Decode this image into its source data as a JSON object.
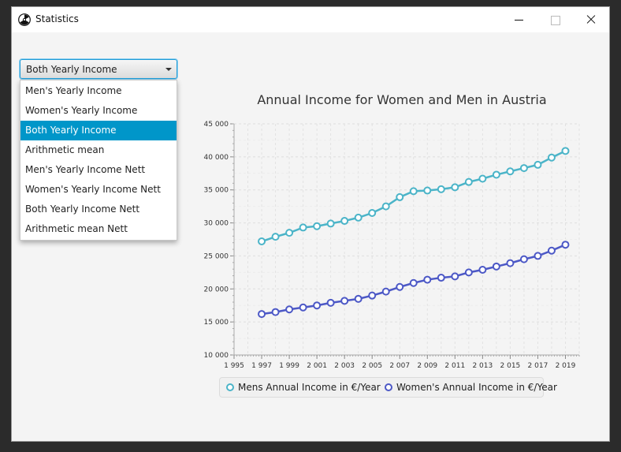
{
  "window": {
    "title": "Statistics",
    "app_icon": "radiation-icon"
  },
  "combo": {
    "selected": "Both Yearly Income",
    "options": [
      "Men's Yearly Income",
      "Women's Yearly Income",
      "Both Yearly Income",
      "Arithmetic mean",
      "Men's Yearly Income Nett",
      "Women's Yearly Income Nett",
      "Both Yearly Income Nett",
      "Arithmetic mean Nett"
    ],
    "selected_index": 2
  },
  "chart_data": {
    "type": "line",
    "title": "Annual Income for Women and Men in Austria",
    "xlabel": "",
    "ylabel": "",
    "xlim": [
      1995,
      2020
    ],
    "ylim": [
      10000,
      45000
    ],
    "x_ticks": [
      "1 995",
      "1 997",
      "1 999",
      "2 001",
      "2 003",
      "2 005",
      "2 007",
      "2 009",
      "2 011",
      "2 013",
      "2 015",
      "2 017",
      "2 019"
    ],
    "y_ticks": [
      "10 000",
      "15 000",
      "20 000",
      "25 000",
      "30 000",
      "35 000",
      "40 000",
      "45 000"
    ],
    "grid": true,
    "legend": "bottom",
    "x": [
      1997,
      1998,
      1999,
      2000,
      2001,
      2002,
      2003,
      2004,
      2005,
      2006,
      2007,
      2008,
      2009,
      2010,
      2011,
      2012,
      2013,
      2014,
      2015,
      2016,
      2017,
      2018,
      2019
    ],
    "series": [
      {
        "name": "Mens Annual Income in €/Year",
        "color": "#4bb4c8",
        "values": [
          27200,
          27900,
          28500,
          29300,
          29500,
          29900,
          30300,
          30800,
          31500,
          32500,
          33900,
          34800,
          34900,
          35100,
          35400,
          36200,
          36700,
          37300,
          37800,
          38300,
          38800,
          39900,
          40900
        ]
      },
      {
        "name": "Women's Annual Income in €/Year",
        "color": "#4c58c6",
        "values": [
          16200,
          16500,
          16900,
          17200,
          17500,
          17900,
          18200,
          18500,
          19000,
          19600,
          20300,
          20900,
          21400,
          21700,
          21900,
          22500,
          22900,
          23400,
          23900,
          24500,
          25000,
          25800,
          26700
        ]
      }
    ]
  }
}
